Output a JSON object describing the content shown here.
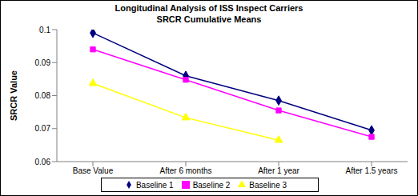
{
  "chart_data": {
    "type": "line",
    "title": "Longitudinal Analysis of ISS Inspect Carriers",
    "subtitle": "SRCR Cumulative Means",
    "y_label": "SRCR Value",
    "categories": [
      "Base Value",
      "After 6 months",
      "After 1 year",
      "After 1.5 years"
    ],
    "series": [
      {
        "name": "Baseline 1",
        "color": "#000080",
        "marker": "diamond",
        "values": [
          0.099,
          0.086,
          0.0785,
          0.0695
        ]
      },
      {
        "name": "Baseline 2",
        "color": "#ff00ff",
        "marker": "square",
        "values": [
          0.094,
          0.0848,
          0.0755,
          0.0675
        ]
      },
      {
        "name": "Baseline 3",
        "color": "#ffff00",
        "marker": "triangle",
        "values": [
          0.0837,
          0.0733,
          0.0665,
          null
        ]
      }
    ],
    "ylim": [
      0.06,
      0.1
    ],
    "yticks": [
      0.06,
      0.07,
      0.08,
      0.09,
      0.1
    ],
    "grid": false,
    "legend": "bottom"
  }
}
